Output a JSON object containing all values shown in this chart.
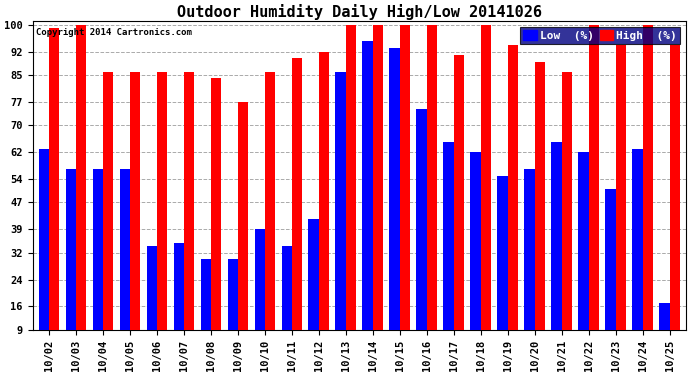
{
  "title": "Outdoor Humidity Daily High/Low 20141026",
  "copyright": "Copyright 2014 Cartronics.com",
  "legend_low": "Low  (%)",
  "legend_high": "High  (%)",
  "dates": [
    "10/02",
    "10/03",
    "10/04",
    "10/05",
    "10/06",
    "10/07",
    "10/08",
    "10/09",
    "10/10",
    "10/11",
    "10/12",
    "10/13",
    "10/14",
    "10/15",
    "10/16",
    "10/17",
    "10/18",
    "10/19",
    "10/20",
    "10/21",
    "10/22",
    "10/23",
    "10/24",
    "10/25"
  ],
  "high": [
    99,
    100,
    86,
    86,
    86,
    86,
    84,
    77,
    86,
    90,
    92,
    100,
    100,
    100,
    100,
    91,
    100,
    94,
    89,
    86,
    100,
    94,
    100,
    94
  ],
  "low": [
    63,
    57,
    57,
    57,
    34,
    35,
    30,
    30,
    39,
    34,
    42,
    86,
    95,
    93,
    75,
    65,
    62,
    55,
    57,
    65,
    62,
    51,
    63,
    17
  ],
  "bar_color_high": "#ff0000",
  "bar_color_low": "#0000ff",
  "bg_color": "#ffffff",
  "plot_bg_color": "#ffffff",
  "grid_color": "#aaaaaa",
  "yticks": [
    9,
    16,
    24,
    32,
    39,
    47,
    54,
    62,
    70,
    77,
    85,
    92,
    100
  ],
  "ymin": 9,
  "ymax": 101,
  "title_fontsize": 11,
  "tick_fontsize": 7.5,
  "legend_fontsize": 8,
  "bar_width": 0.38
}
